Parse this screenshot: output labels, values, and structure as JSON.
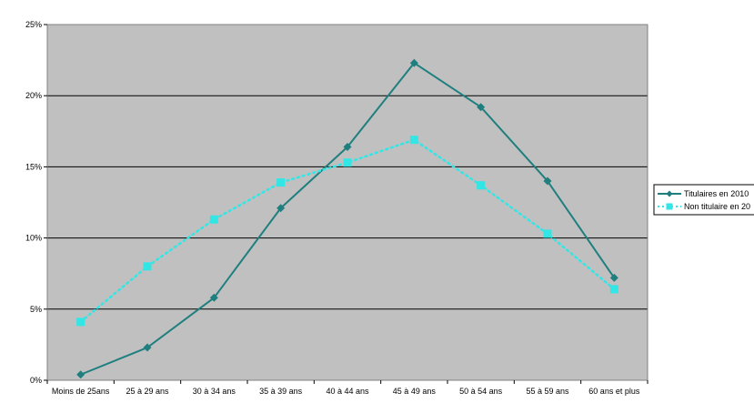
{
  "chart_data": {
    "type": "line",
    "title": "",
    "xlabel": "",
    "ylabel": "",
    "categories": [
      "Moins de 25ans",
      "25 à 29 ans",
      "30 à 34 ans",
      "35 à 39 ans",
      "40 à 44 ans",
      "45 à 49 ans",
      "50 à 54 ans",
      "55 à 59 ans",
      "60 ans et plus"
    ],
    "series": [
      {
        "name": "Titulaires en 2010",
        "values": [
          0.4,
          2.3,
          5.8,
          12.1,
          16.4,
          22.3,
          19.2,
          14.0,
          7.2
        ],
        "color": "#1f7f7f",
        "line_style": "solid",
        "marker": "diamond"
      },
      {
        "name": "Non titulaire en 20",
        "values": [
          4.1,
          8.0,
          11.3,
          13.9,
          15.3,
          16.9,
          13.7,
          10.3,
          6.4
        ],
        "color": "#33e6e6",
        "line_style": "dotted",
        "marker": "square"
      }
    ],
    "yticks": [
      "0%",
      "5%",
      "10%",
      "15%",
      "20%",
      "25%"
    ],
    "ylim": [
      0,
      25
    ],
    "grid": true,
    "legend_position": "right",
    "plot_background": "#c0c0c0"
  }
}
